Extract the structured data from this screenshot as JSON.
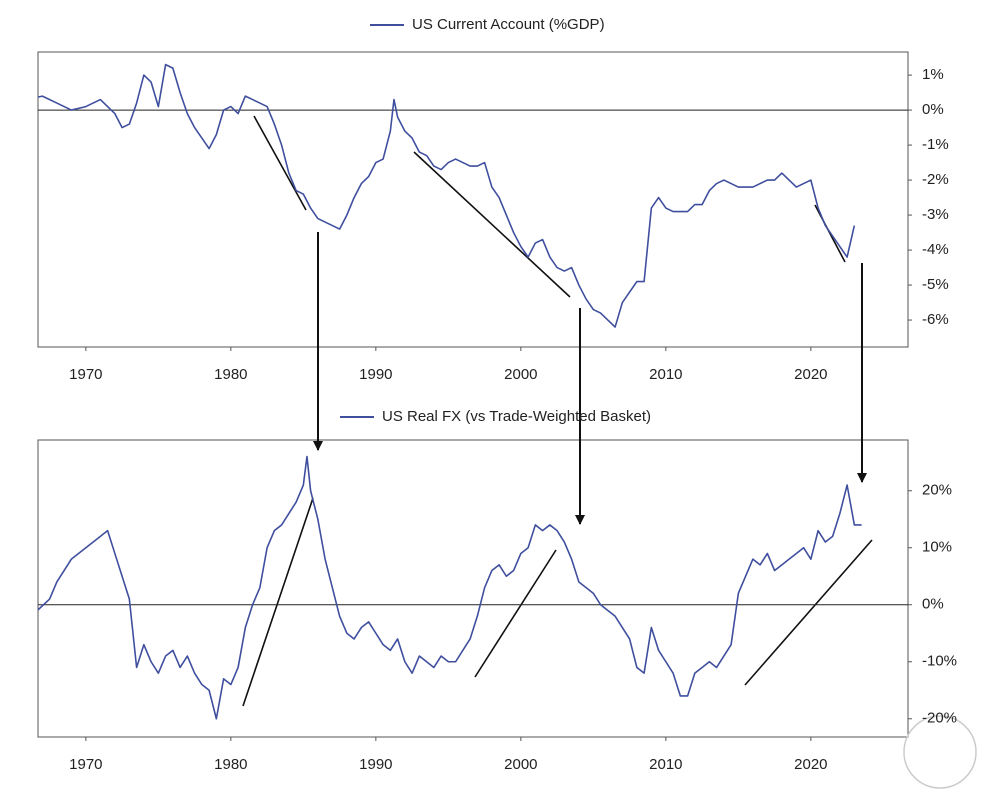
{
  "chart_data": [
    {
      "type": "line",
      "x": [
        1966.7,
        1967,
        1968,
        1969,
        1970,
        1971,
        1972,
        1972.5,
        1973,
        1973.5,
        1974,
        1974.5,
        1975,
        1975.5,
        1976,
        1976.5,
        1977,
        1977.5,
        1978,
        1978.5,
        1979,
        1979.5,
        1980,
        1980.5,
        1981,
        1981.5,
        1982,
        1982.5,
        1983,
        1983.5,
        1984,
        1984.5,
        1985,
        1985.5,
        1986,
        1986.5,
        1987,
        1987.5,
        1988,
        1988.5,
        1989,
        1989.5,
        1990,
        1990.5,
        1991,
        1991.25,
        1991.5,
        1992,
        1992.5,
        1993,
        1993.5,
        1994,
        1994.5,
        1995,
        1995.5,
        1996,
        1996.5,
        1997,
        1997.5,
        1998,
        1998.5,
        1999,
        1999.5,
        2000,
        2000.5,
        2001,
        2001.5,
        2002,
        2002.5,
        2003,
        2003.5,
        2004,
        2004.5,
        2005,
        2005.5,
        2006,
        2006.5,
        2007,
        2007.5,
        2008,
        2008.5,
        2009,
        2009.5,
        2010,
        2010.5,
        2011,
        2011.5,
        2012,
        2012.5,
        2013,
        2013.5,
        2014,
        2014.5,
        2015,
        2015.5,
        2016,
        2016.5,
        2017,
        2017.5,
        2018,
        2018.5,
        2019,
        2019.5,
        2020,
        2020.5,
        2021,
        2021.5,
        2022,
        2022.5,
        2023
      ],
      "series": [
        {
          "name": "US Current Account (%GDP)",
          "color": "#3f4f9e",
          "values": [
            0.37,
            0.4,
            0.2,
            0.0,
            0.1,
            0.3,
            -0.1,
            -0.5,
            -0.4,
            0.2,
            1.0,
            0.8,
            0.1,
            1.3,
            1.2,
            0.5,
            -0.1,
            -0.5,
            -0.8,
            -1.1,
            -0.7,
            0.0,
            0.1,
            -0.1,
            0.4,
            0.3,
            0.2,
            0.1,
            -0.4,
            -1.0,
            -1.8,
            -2.3,
            -2.4,
            -2.8,
            -3.1,
            -3.2,
            -3.3,
            -3.4,
            -3.0,
            -2.5,
            -2.1,
            -1.9,
            -1.5,
            -1.4,
            -0.6,
            0.3,
            -0.2,
            -0.6,
            -0.8,
            -1.2,
            -1.3,
            -1.6,
            -1.7,
            -1.5,
            -1.4,
            -1.5,
            -1.6,
            -1.6,
            -1.5,
            -2.2,
            -2.5,
            -3.0,
            -3.5,
            -3.9,
            -4.2,
            -3.8,
            -3.7,
            -4.2,
            -4.5,
            -4.6,
            -4.5,
            -5.0,
            -5.4,
            -5.7,
            -5.8,
            -6.0,
            -6.2,
            -5.5,
            -5.2,
            -4.9,
            -4.9,
            -2.8,
            -2.5,
            -2.8,
            -2.9,
            -2.9,
            -2.9,
            -2.7,
            -2.7,
            -2.3,
            -2.1,
            -2.0,
            -2.1,
            -2.2,
            -2.2,
            -2.2,
            -2.1,
            -2.0,
            -2.0,
            -1.8,
            -2.0,
            -2.2,
            -2.1,
            -2.0,
            -2.8,
            -3.3,
            -3.6,
            -3.9,
            -4.2,
            -3.3
          ]
        }
      ],
      "xlim": [
        1966.7,
        2026.7
      ],
      "xticks": [
        1970,
        1980,
        1990,
        2000,
        2010,
        2020
      ],
      "ylim": [
        -6.77,
        1.66
      ],
      "yticks": [
        {
          "value": 1,
          "label": "1%"
        },
        {
          "value": 0,
          "label": "0%"
        },
        {
          "value": -1,
          "label": "-1%"
        },
        {
          "value": -2,
          "label": "-2%"
        },
        {
          "value": -3,
          "label": "-3%"
        },
        {
          "value": -4,
          "label": "-4%"
        },
        {
          "value": -5,
          "label": "-5%"
        },
        {
          "value": -6,
          "label": "-6%"
        }
      ]
    },
    {
      "type": "line",
      "x": [
        1966.7,
        1967.5,
        1968,
        1969,
        1970,
        1971,
        1971.5,
        1972,
        1972.5,
        1973,
        1973.5,
        1974,
        1974.5,
        1975,
        1975.5,
        1976,
        1976.5,
        1977,
        1977.5,
        1978,
        1978.5,
        1979,
        1979.5,
        1980,
        1980.5,
        1981,
        1981.5,
        1982,
        1982.5,
        1983,
        1983.5,
        1984,
        1984.5,
        1985,
        1985.25,
        1985.5,
        1986,
        1986.5,
        1987,
        1987.5,
        1988,
        1988.5,
        1989,
        1989.5,
        1990,
        1990.5,
        1991,
        1991.5,
        1992,
        1992.5,
        1993,
        1993.5,
        1994,
        1994.5,
        1995,
        1995.5,
        1996,
        1996.5,
        1997,
        1997.5,
        1998,
        1998.5,
        1999,
        1999.5,
        2000,
        2000.5,
        2001,
        2001.5,
        2002,
        2002.5,
        2003,
        2003.5,
        2004,
        2004.5,
        2005,
        2005.5,
        2006,
        2006.5,
        2007,
        2007.5,
        2008,
        2008.5,
        2009,
        2009.5,
        2010,
        2010.5,
        2011,
        2011.5,
        2012,
        2012.5,
        2013,
        2013.5,
        2014,
        2014.5,
        2015,
        2015.5,
        2016,
        2016.5,
        2017,
        2017.5,
        2018,
        2018.5,
        2019,
        2019.5,
        2020,
        2020.5,
        2021,
        2021.5,
        2022,
        2022.5,
        2023,
        2023.5
      ],
      "series": [
        {
          "name": "US Real FX (vs Trade-Weighted Basket)",
          "color": "#3f4f9e",
          "values": [
            -0.9,
            1,
            4,
            8,
            10,
            12,
            13,
            9,
            5,
            1,
            -11,
            -7,
            -10,
            -12,
            -9,
            -8,
            -11,
            -9,
            -12,
            -14,
            -15,
            -20,
            -13,
            -14,
            -11,
            -4,
            0,
            3,
            10,
            13,
            14,
            16,
            18,
            21,
            26,
            20,
            15,
            8,
            3,
            -2,
            -5,
            -6,
            -4,
            -3,
            -5,
            -7,
            -8,
            -6,
            -10,
            -12,
            -9,
            -10,
            -11,
            -9,
            -10,
            -10,
            -8,
            -6,
            -2,
            3,
            6,
            7,
            5,
            6,
            9,
            10,
            14,
            13,
            14,
            13,
            11,
            8,
            4,
            3,
            2,
            0,
            -1,
            -2,
            -4,
            -6,
            -11,
            -12,
            -4,
            -8,
            -10,
            -12,
            -16,
            -16,
            -12,
            -11,
            -10,
            -11,
            -9,
            -7,
            2,
            5,
            8,
            7,
            9,
            6,
            7,
            8,
            9,
            10,
            8,
            13,
            11,
            12,
            16,
            21,
            14,
            14
          ]
        }
      ],
      "xlim": [
        1966.7,
        2026.7
      ],
      "xticks": [
        1970,
        1980,
        1990,
        2000,
        2010,
        2020
      ],
      "ylim": [
        -23.2,
        28.9
      ],
      "yticks": [
        {
          "value": 20,
          "label": "20%"
        },
        {
          "value": 10,
          "label": "10%"
        },
        {
          "value": 0,
          "label": "0%"
        },
        {
          "value": -10,
          "label": "-10%"
        },
        {
          "value": -20,
          "label": "-20%"
        }
      ]
    }
  ]
}
